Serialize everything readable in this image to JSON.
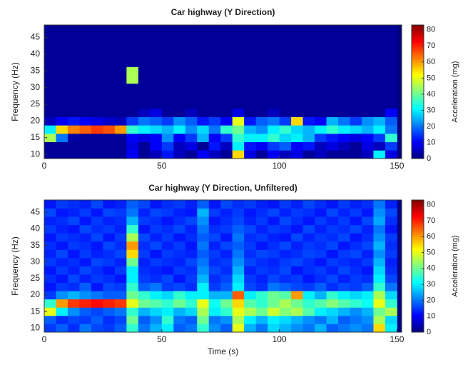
{
  "chart_data": [
    {
      "type": "heatmap",
      "title": "Car highway (Y Direction)",
      "ylabel": "Frequency (Hz)",
      "x": [
        2.5,
        7.5,
        12.5,
        17.5,
        22.5,
        27.5,
        32.5,
        37.5,
        42.5,
        47.5,
        52.5,
        57.5,
        62.5,
        67.5,
        72.5,
        77.5,
        82.5,
        87.5,
        92.5,
        97.5,
        102.5,
        107.5,
        112.5,
        117.5,
        122.5,
        127.5,
        132.5,
        137.5,
        142.5,
        147.5
      ],
      "y": [
        10,
        12.5,
        15,
        17.5,
        20,
        22.5,
        25,
        27.5,
        30,
        32.5,
        35,
        37.5,
        40,
        42.5,
        45,
        47.5
      ],
      "z": [
        [
          2,
          2,
          2,
          2,
          2,
          2,
          2,
          10,
          2,
          5,
          12,
          5,
          2,
          10,
          5,
          2,
          55,
          8,
          2,
          10,
          5,
          8,
          2,
          5,
          2,
          2,
          2,
          5,
          30,
          8
        ],
        [
          2,
          2,
          2,
          2,
          2,
          2,
          2,
          8,
          2,
          10,
          15,
          5,
          8,
          2,
          12,
          5,
          30,
          12,
          10,
          15,
          18,
          10,
          12,
          5,
          8,
          5,
          2,
          8,
          5,
          15
        ],
        [
          45,
          20,
          3,
          2,
          2,
          2,
          2,
          10,
          8,
          10,
          22,
          10,
          15,
          25,
          10,
          15,
          35,
          30,
          30,
          35,
          28,
          30,
          25,
          15,
          12,
          10,
          8,
          10,
          15,
          35
        ],
        [
          30,
          55,
          62,
          65,
          68,
          66,
          60,
          35,
          30,
          28,
          25,
          30,
          22,
          28,
          20,
          35,
          40,
          25,
          22,
          30,
          35,
          28,
          25,
          30,
          35,
          30,
          28,
          25,
          30,
          20
        ],
        [
          5,
          10,
          12,
          10,
          8,
          6,
          5,
          15,
          20,
          18,
          15,
          22,
          18,
          12,
          15,
          10,
          50,
          12,
          18,
          20,
          15,
          55,
          12,
          10,
          25,
          20,
          15,
          22,
          25,
          18
        ],
        [
          2,
          2,
          2,
          2,
          2,
          2,
          2,
          2,
          5,
          8,
          2,
          2,
          5,
          2,
          2,
          2,
          8,
          2,
          2,
          5,
          2,
          2,
          2,
          2,
          2,
          2,
          2,
          2,
          2,
          10
        ],
        [
          2,
          2,
          2,
          2,
          2,
          2,
          2,
          2,
          2,
          2,
          2,
          2,
          2,
          2,
          2,
          2,
          2,
          2,
          2,
          2,
          2,
          2,
          2,
          2,
          2,
          2,
          2,
          2,
          2,
          2
        ],
        [
          2,
          2,
          2,
          2,
          2,
          2,
          2,
          2,
          2,
          2,
          2,
          2,
          2,
          2,
          2,
          2,
          2,
          2,
          2,
          2,
          2,
          2,
          2,
          2,
          2,
          2,
          2,
          2,
          2,
          2
        ],
        [
          2,
          2,
          2,
          2,
          2,
          2,
          2,
          2,
          2,
          2,
          2,
          2,
          2,
          2,
          2,
          2,
          2,
          2,
          2,
          2,
          2,
          2,
          2,
          2,
          2,
          2,
          2,
          2,
          2,
          2
        ],
        [
          2,
          2,
          2,
          2,
          2,
          2,
          2,
          45,
          2,
          2,
          2,
          2,
          2,
          2,
          2,
          2,
          2,
          2,
          2,
          2,
          2,
          2,
          2,
          2,
          2,
          2,
          2,
          2,
          2,
          2
        ],
        [
          2,
          2,
          2,
          2,
          2,
          2,
          2,
          45,
          2,
          2,
          2,
          2,
          2,
          2,
          2,
          2,
          2,
          2,
          2,
          2,
          2,
          2,
          2,
          2,
          2,
          2,
          2,
          2,
          2,
          2
        ],
        [
          2,
          2,
          2,
          2,
          2,
          2,
          2,
          2,
          2,
          2,
          2,
          2,
          2,
          2,
          2,
          2,
          2,
          2,
          2,
          2,
          2,
          2,
          2,
          2,
          2,
          2,
          2,
          2,
          2,
          2
        ],
        [
          2,
          2,
          2,
          2,
          2,
          2,
          2,
          2,
          2,
          2,
          2,
          2,
          2,
          2,
          2,
          2,
          2,
          2,
          2,
          2,
          2,
          2,
          2,
          2,
          2,
          2,
          2,
          2,
          2,
          2
        ],
        [
          2,
          2,
          2,
          2,
          2,
          2,
          2,
          2,
          2,
          2,
          2,
          2,
          2,
          2,
          2,
          2,
          2,
          2,
          2,
          2,
          2,
          2,
          2,
          2,
          2,
          2,
          2,
          2,
          2,
          2
        ],
        [
          2,
          2,
          2,
          2,
          2,
          2,
          2,
          2,
          2,
          2,
          2,
          2,
          2,
          2,
          2,
          2,
          2,
          2,
          2,
          2,
          2,
          2,
          2,
          2,
          2,
          2,
          2,
          2,
          2,
          2
        ],
        [
          2,
          2,
          2,
          2,
          2,
          2,
          2,
          2,
          2,
          2,
          2,
          2,
          2,
          2,
          2,
          2,
          2,
          2,
          2,
          2,
          2,
          2,
          2,
          2,
          2,
          2,
          2,
          2,
          2,
          2
        ]
      ],
      "xlim": [
        0,
        152
      ],
      "ylim": [
        8.75,
        48.75
      ],
      "xticks": [
        0,
        50,
        100,
        150
      ],
      "yticks": [
        10,
        15,
        20,
        25,
        30,
        35,
        40,
        45
      ],
      "colorbar": {
        "label": "Acceleration (mg)",
        "colormap": "jet",
        "clim": [
          0,
          83
        ],
        "ticks": [
          0,
          10,
          20,
          30,
          40,
          50,
          60,
          70,
          80
        ]
      }
    },
    {
      "type": "heatmap",
      "title": "Car highway (Y Direction, Unfiltered)",
      "ylabel": "Frequency (Hz)",
      "xlabel": "Time (s)",
      "x": [
        2.5,
        7.5,
        12.5,
        17.5,
        22.5,
        27.5,
        32.5,
        37.5,
        42.5,
        47.5,
        52.5,
        57.5,
        62.5,
        67.5,
        72.5,
        77.5,
        82.5,
        87.5,
        92.5,
        97.5,
        102.5,
        107.5,
        112.5,
        117.5,
        122.5,
        127.5,
        132.5,
        137.5,
        142.5,
        147.5
      ],
      "y": [
        10,
        12.5,
        15,
        17.5,
        20,
        22.5,
        25,
        27.5,
        30,
        32.5,
        35,
        37.5,
        40,
        42.5,
        45,
        47.5
      ],
      "z": [
        [
          15,
          18,
          14,
          20,
          16,
          15,
          18,
          35,
          20,
          25,
          30,
          18,
          20,
          35,
          22,
          18,
          50,
          25,
          20,
          28,
          25,
          22,
          20,
          25,
          18,
          20,
          22,
          20,
          55,
          30
        ],
        [
          18,
          14,
          16,
          15,
          18,
          14,
          16,
          40,
          18,
          22,
          35,
          20,
          18,
          40,
          20,
          22,
          45,
          30,
          25,
          30,
          28,
          25,
          22,
          20,
          25,
          18,
          20,
          22,
          45,
          28
        ],
        [
          50,
          30,
          22,
          18,
          16,
          18,
          20,
          35,
          25,
          28,
          30,
          25,
          28,
          45,
          30,
          35,
          50,
          45,
          40,
          48,
          42,
          45,
          38,
          30,
          28,
          25,
          22,
          25,
          40,
          45
        ],
        [
          35,
          60,
          68,
          70,
          72,
          70,
          68,
          50,
          40,
          38,
          35,
          40,
          35,
          50,
          32,
          40,
          55,
          38,
          35,
          40,
          45,
          40,
          35,
          38,
          42,
          38,
          35,
          32,
          50,
          35
        ],
        [
          15,
          22,
          25,
          22,
          20,
          18,
          18,
          40,
          35,
          30,
          28,
          35,
          30,
          30,
          25,
          25,
          65,
          30,
          35,
          40,
          38,
          60,
          30,
          25,
          35,
          30,
          28,
          30,
          45,
          28
        ],
        [
          12,
          15,
          14,
          18,
          12,
          16,
          15,
          35,
          18,
          20,
          15,
          16,
          14,
          30,
          15,
          18,
          30,
          16,
          14,
          20,
          18,
          16,
          15,
          18,
          14,
          16,
          15,
          18,
          35,
          20
        ],
        [
          14,
          12,
          16,
          13,
          15,
          14,
          12,
          30,
          15,
          14,
          16,
          12,
          15,
          25,
          14,
          16,
          28,
          15,
          13,
          16,
          14,
          15,
          12,
          14,
          16,
          13,
          15,
          14,
          30,
          16
        ],
        [
          12,
          15,
          13,
          16,
          14,
          12,
          15,
          30,
          14,
          13,
          12,
          15,
          14,
          22,
          16,
          14,
          25,
          13,
          15,
          14,
          16,
          12,
          14,
          15,
          13,
          16,
          14,
          12,
          28,
          14
        ],
        [
          15,
          13,
          14,
          12,
          16,
          15,
          13,
          40,
          13,
          15,
          14,
          13,
          16,
          20,
          14,
          15,
          22,
          16,
          14,
          13,
          15,
          16,
          14,
          12,
          15,
          14,
          13,
          15,
          25,
          13
        ],
        [
          13,
          16,
          12,
          15,
          13,
          14,
          16,
          55,
          15,
          12,
          15,
          14,
          13,
          18,
          15,
          13,
          20,
          14,
          16,
          15,
          13,
          14,
          16,
          15,
          12,
          15,
          16,
          13,
          22,
          15
        ],
        [
          14,
          12,
          15,
          14,
          12,
          16,
          14,
          60,
          14,
          16,
          13,
          15,
          12,
          20,
          13,
          16,
          18,
          15,
          12,
          14,
          16,
          13,
          15,
          14,
          16,
          12,
          14,
          16,
          25,
          14
        ],
        [
          12,
          15,
          14,
          13,
          16,
          12,
          15,
          45,
          16,
          13,
          15,
          12,
          14,
          18,
          16,
          12,
          20,
          14,
          15,
          13,
          12,
          16,
          13,
          15,
          14,
          16,
          12,
          14,
          22,
          15
        ],
        [
          15,
          13,
          12,
          16,
          14,
          15,
          13,
          35,
          12,
          15,
          14,
          16,
          13,
          20,
          14,
          15,
          18,
          16,
          13,
          15,
          14,
          12,
          16,
          13,
          15,
          14,
          16,
          13,
          20,
          12
        ],
        [
          13,
          14,
          16,
          12,
          15,
          13,
          14,
          25,
          15,
          14,
          12,
          14,
          16,
          22,
          12,
          14,
          16,
          13,
          15,
          12,
          16,
          14,
          12,
          15,
          13,
          15,
          12,
          16,
          24,
          14
        ],
        [
          16,
          12,
          13,
          15,
          12,
          16,
          15,
          20,
          13,
          16,
          15,
          13,
          12,
          25,
          15,
          13,
          15,
          12,
          14,
          16,
          13,
          15,
          14,
          12,
          16,
          13,
          15,
          12,
          22,
          16
        ],
        [
          12,
          15,
          14,
          13,
          16,
          12,
          13,
          18,
          16,
          12,
          14,
          15,
          13,
          18,
          12,
          16,
          14,
          15,
          13,
          12,
          15,
          13,
          16,
          14,
          12,
          15,
          13,
          14,
          20,
          13
        ]
      ],
      "xlim": [
        0,
        152
      ],
      "ylim": [
        8.75,
        48.75
      ],
      "xticks": [
        0,
        50,
        100,
        150
      ],
      "yticks": [
        10,
        15,
        20,
        25,
        30,
        35,
        40,
        45
      ],
      "colorbar": {
        "label": "Acceleration (mg)",
        "colormap": "jet",
        "clim": [
          0,
          83
        ],
        "ticks": [
          0,
          10,
          20,
          30,
          40,
          50,
          60,
          70,
          80
        ]
      }
    }
  ]
}
